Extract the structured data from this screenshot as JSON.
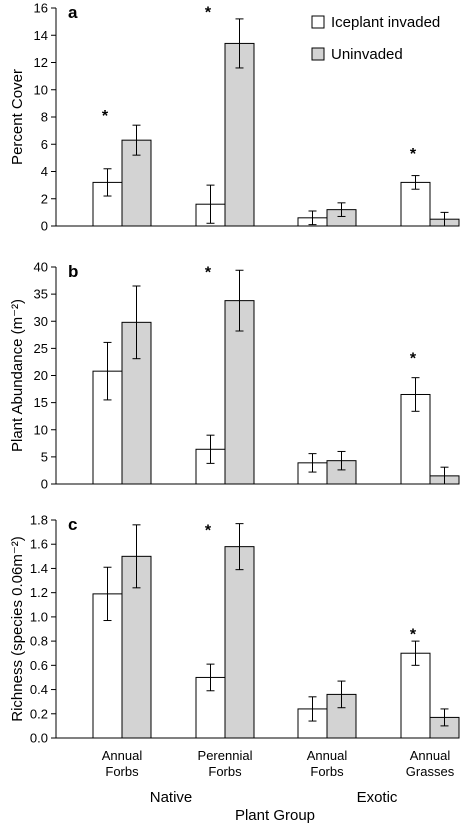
{
  "chart_data": {
    "type": "bar",
    "legend": {
      "placement": "top-right",
      "entries": [
        {
          "name": "Iceplant invaded",
          "color": "#ffffff"
        },
        {
          "name": "Uninvaded",
          "color": "#d3d3d3"
        }
      ]
    },
    "categories": [
      [
        "Annual",
        "Forbs"
      ],
      [
        "Perennial",
        "Forbs"
      ],
      [
        "Annual",
        "Forbs"
      ],
      [
        "Annual",
        "Grasses"
      ]
    ],
    "groups": [
      "Native",
      "Exotic"
    ],
    "xlabel": "Plant Group",
    "significance_marker": "*",
    "panels": [
      {
        "label": "a",
        "ylabel": "Percent Cover",
        "ylim": [
          0,
          16
        ],
        "yticks": [
          "0",
          "2",
          "4",
          "6",
          "8",
          "10",
          "12",
          "14",
          "16"
        ],
        "series": [
          {
            "name": "Iceplant invaded",
            "values": [
              3.2,
              1.6,
              0.6,
              3.2
            ],
            "errors": [
              1.0,
              1.4,
              0.5,
              0.5
            ]
          },
          {
            "name": "Uninvaded",
            "values": [
              6.3,
              13.4,
              1.2,
              0.5
            ],
            "errors": [
              1.1,
              1.8,
              0.5,
              0.5
            ]
          }
        ],
        "significant": [
          0,
          1,
          3
        ],
        "star_values": [
          8.3,
          15.9,
          5.5
        ]
      },
      {
        "label": "b",
        "ylabel": "Plant Abundance (m⁻²)",
        "ylim": [
          0,
          40
        ],
        "yticks": [
          "0",
          "5",
          "10",
          "15",
          "20",
          "25",
          "30",
          "35",
          "40"
        ],
        "series": [
          {
            "name": "Iceplant invaded",
            "values": [
              20.8,
              6.4,
              3.9,
              16.5
            ],
            "errors": [
              5.3,
              2.6,
              1.7,
              3.1
            ]
          },
          {
            "name": "Uninvaded",
            "values": [
              29.8,
              33.8,
              4.3,
              1.5
            ],
            "errors": [
              6.7,
              5.6,
              1.7,
              1.6
            ]
          }
        ],
        "significant": [
          1,
          3
        ],
        "star_values": [
          39.5,
          23.7
        ]
      },
      {
        "label": "c",
        "ylabel": "Richness (species 0.06m⁻²)",
        "ylim": [
          0,
          1.8
        ],
        "yticks": [
          "0.0",
          "0.2",
          "0.4",
          "0.6",
          "0.8",
          "1.0",
          "1.2",
          "1.4",
          "1.6",
          "1.8"
        ],
        "series": [
          {
            "name": "Iceplant invaded",
            "values": [
              1.19,
              0.5,
              0.24,
              0.7
            ],
            "errors": [
              0.22,
              0.11,
              0.1,
              0.1
            ]
          },
          {
            "name": "Uninvaded",
            "values": [
              1.5,
              1.58,
              0.36,
              0.17
            ],
            "errors": [
              0.26,
              0.19,
              0.11,
              0.07
            ]
          }
        ],
        "significant": [
          1,
          3
        ],
        "star_values": [
          1.74,
          0.88
        ]
      }
    ]
  }
}
